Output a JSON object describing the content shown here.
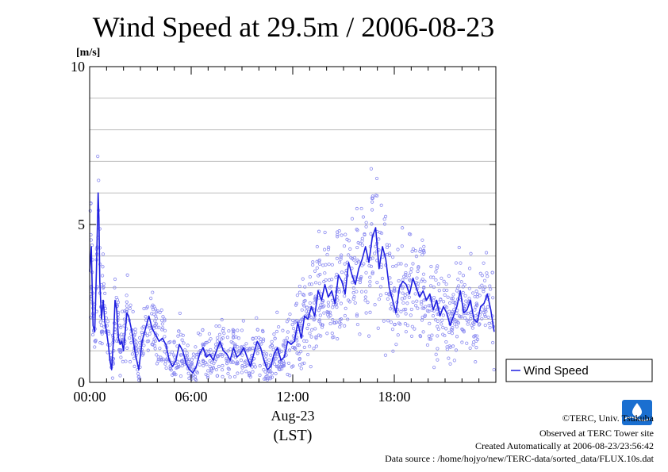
{
  "chart_data": {
    "type": "scatter",
    "title": "Wind Speed at 29.5m / 2006-08-23",
    "ylabel": "[m/s]",
    "xlabel": "(LST)",
    "date_label": "Aug-23",
    "x_unit": "hours",
    "xlim": [
      0,
      24
    ],
    "ylim": [
      0,
      10
    ],
    "x_ticks": [
      0,
      6,
      12,
      18
    ],
    "x_tick_labels": [
      "00:00",
      "06:00",
      "12:00",
      "18:00"
    ],
    "y_ticks": [
      0,
      5,
      10
    ],
    "y_tick_labels": [
      "0",
      "5",
      "10"
    ],
    "grid": true,
    "legend": {
      "position": "right",
      "entries": [
        "Wind Speed"
      ]
    },
    "colors": {
      "line": "#1f1fe0",
      "points": "#8a8af0"
    },
    "series": [
      {
        "name": "Wind Speed",
        "x": [
          0.0,
          0.1,
          0.15,
          0.2,
          0.3,
          0.4,
          0.5,
          0.55,
          0.6,
          0.7,
          0.8,
          0.9,
          1.0,
          1.1,
          1.2,
          1.3,
          1.4,
          1.5,
          1.6,
          1.7,
          1.8,
          1.9,
          2.0,
          2.1,
          2.2,
          2.3,
          2.5,
          2.7,
          2.9,
          3.1,
          3.3,
          3.5,
          3.7,
          3.9,
          4.1,
          4.3,
          4.5,
          4.7,
          4.9,
          5.1,
          5.3,
          5.5,
          5.7,
          5.9,
          6.1,
          6.3,
          6.5,
          6.7,
          6.9,
          7.1,
          7.3,
          7.5,
          7.7,
          7.9,
          8.1,
          8.3,
          8.5,
          8.7,
          8.9,
          9.1,
          9.3,
          9.5,
          9.7,
          9.9,
          10.1,
          10.3,
          10.5,
          10.7,
          10.9,
          11.1,
          11.3,
          11.5,
          11.7,
          11.9,
          12.1,
          12.3,
          12.5,
          12.7,
          12.9,
          13.1,
          13.3,
          13.5,
          13.7,
          13.9,
          14.1,
          14.3,
          14.5,
          14.7,
          14.9,
          15.1,
          15.3,
          15.5,
          15.7,
          15.9,
          16.1,
          16.3,
          16.5,
          16.7,
          16.9,
          17.1,
          17.3,
          17.5,
          17.7,
          17.9,
          18.1,
          18.3,
          18.5,
          18.7,
          18.9,
          19.1,
          19.3,
          19.5,
          19.7,
          19.9,
          20.1,
          20.3,
          20.5,
          20.7,
          20.9,
          21.1,
          21.3,
          21.5,
          21.7,
          21.9,
          22.1,
          22.3,
          22.5,
          22.7,
          22.9,
          23.1,
          23.3,
          23.5,
          23.7,
          23.9
        ],
        "values": [
          3.5,
          4.3,
          3.0,
          1.8,
          1.6,
          3.5,
          6.0,
          5.2,
          3.2,
          2.0,
          2.6,
          1.9,
          1.6,
          1.2,
          0.7,
          0.4,
          1.3,
          2.6,
          2.3,
          1.4,
          1.2,
          1.3,
          1.0,
          1.6,
          2.2,
          2.1,
          1.6,
          0.9,
          0.4,
          1.3,
          1.7,
          2.1,
          1.7,
          1.5,
          1.3,
          1.4,
          1.2,
          0.7,
          0.5,
          0.7,
          1.2,
          1.0,
          0.6,
          0.4,
          0.3,
          0.5,
          0.9,
          1.1,
          0.8,
          0.9,
          0.7,
          1.0,
          1.3,
          1.0,
          0.9,
          0.7,
          1.1,
          0.8,
          0.9,
          1.1,
          0.8,
          0.5,
          0.9,
          1.3,
          1.1,
          0.7,
          0.4,
          0.5,
          0.9,
          1.1,
          0.7,
          0.8,
          1.3,
          1.2,
          1.3,
          1.9,
          1.4,
          2.1,
          2.0,
          2.4,
          2.1,
          2.9,
          2.6,
          3.1,
          2.7,
          2.9,
          2.5,
          3.4,
          3.2,
          2.8,
          3.8,
          3.4,
          3.1,
          3.6,
          3.9,
          4.3,
          3.8,
          4.6,
          4.9,
          3.6,
          4.3,
          3.9,
          3.0,
          2.6,
          2.2,
          3.0,
          3.2,
          3.1,
          2.8,
          3.3,
          3.0,
          2.7,
          2.9,
          2.6,
          2.8,
          2.3,
          2.6,
          2.1,
          2.4,
          2.2,
          1.8,
          2.1,
          2.4,
          2.9,
          2.2,
          2.3,
          2.6,
          2.0,
          1.9,
          2.4,
          2.5,
          2.8,
          2.3,
          1.6
        ]
      }
    ]
  },
  "footer": {
    "copyright": "©TERC, Univ. Tsukuba",
    "observed": "Observed at TERC Tower site",
    "created": "Created Automatically at 2006-08-23/23:56:42",
    "source": "Data source : /home/hojyo/new/TERC-data/sorted_data/FLUX.10s.dat"
  },
  "logo": {
    "text": "TERC",
    "color": "#1a6fd0"
  }
}
